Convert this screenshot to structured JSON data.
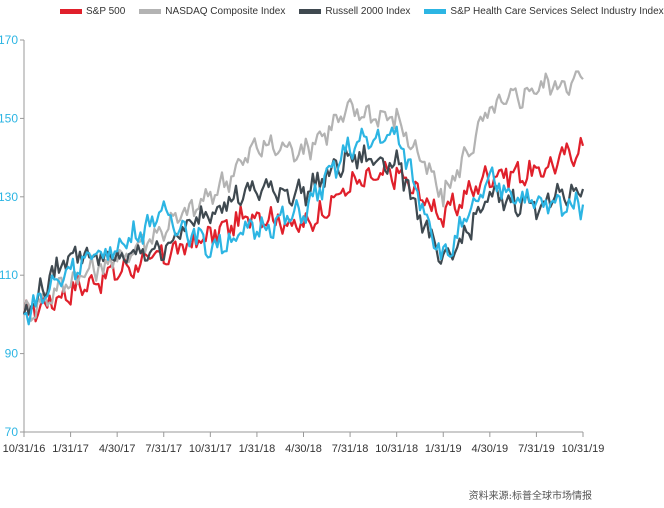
{
  "chart_data": {
    "type": "line",
    "title": "",
    "xlabel": "",
    "ylabel": "",
    "ylim": [
      70,
      170
    ],
    "yticks": [
      70,
      90,
      110,
      130,
      150,
      170
    ],
    "x_tick_labels": [
      "10/31/16",
      "1/31/17",
      "4/30/17",
      "7/31/17",
      "10/31/17",
      "1/31/18",
      "4/30/18",
      "7/31/18",
      "10/31/18",
      "1/31/19",
      "4/30/19",
      "7/31/19",
      "10/31/19"
    ],
    "x": [
      "10/31/16",
      "1/31/17",
      "4/30/17",
      "7/31/17",
      "10/31/17",
      "1/31/18",
      "4/30/18",
      "7/31/18",
      "10/31/18",
      "1/31/19",
      "4/30/19",
      "7/31/19",
      "10/31/19"
    ],
    "legend_position": "top",
    "grid": false,
    "series": [
      {
        "name": "S&P 500",
        "color": "#e0202b",
        "values": [
          100,
          106,
          111,
          115,
          120,
          126,
          122,
          133,
          136,
          125,
          136,
          136,
          143
        ]
      },
      {
        "name": "NASDAQ Composite Index",
        "color": "#b3b3b3",
        "values": [
          100,
          109,
          114,
          122,
          130,
          143,
          142,
          152,
          150,
          130,
          152,
          158,
          160
        ]
      },
      {
        "name": "Russell 2000 Index",
        "color": "#3f4950",
        "values": [
          100,
          116,
          114,
          117,
          127,
          132,
          131,
          140,
          139,
          112,
          130,
          128,
          132
        ]
      },
      {
        "name": "S&P Health Care Services Select Industry Index",
        "color": "#2cb5e3",
        "values": [
          100,
          112,
          117,
          126,
          117,
          122,
          126,
          143,
          146,
          114,
          134,
          128,
          128
        ]
      }
    ]
  },
  "source_text": "资料来源:标普全球市场情报"
}
